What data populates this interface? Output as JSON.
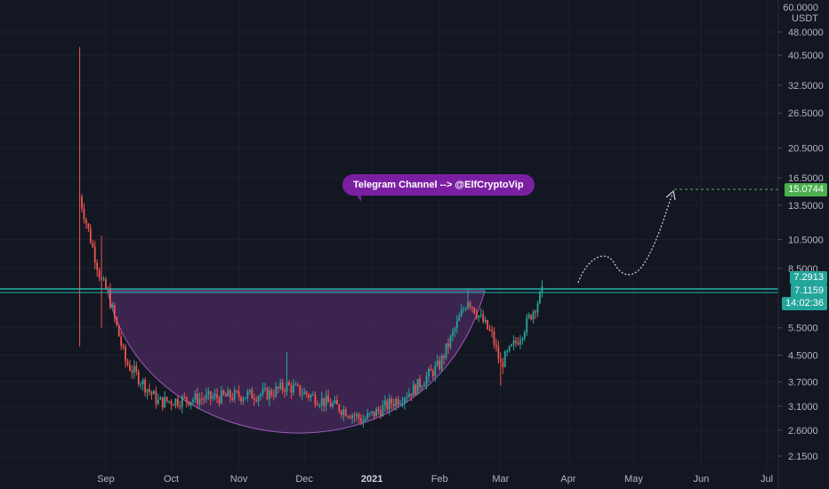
{
  "chart": {
    "unit_top": "60.0000",
    "unit": "USDT"
  },
  "annotation": {
    "text": "Telegram Channel --> @ElfCryptoVip"
  },
  "price_tags": {
    "target": "15.0744",
    "resistance": "7.2913",
    "last": "7.1159",
    "countdown": "14:02:36"
  },
  "colors": {
    "background": "#131722",
    "up": "#26a69a",
    "down": "#ef5350",
    "resistance_line": "#22b3a8",
    "target_tag": "#4caf50",
    "bubble": "#7b1fa2",
    "cup_fill": "#4a2a5e"
  },
  "chart_data": {
    "type": "candlestick",
    "y_scale": "log",
    "ylim": [
      2.0,
      60.0
    ],
    "y_ticks": [
      "60.0000",
      "48.0000",
      "40.5000",
      "32.5000",
      "26.5000",
      "20.5000",
      "16.5000",
      "13.5000",
      "10.5000",
      "8.5000",
      "5.5000",
      "4.5000",
      "3.7000",
      "3.1000",
      "2.6000",
      "2.1500"
    ],
    "y_tick_values": [
      60,
      48,
      40.5,
      32.5,
      26.5,
      20.5,
      16.5,
      13.5,
      10.5,
      8.5,
      5.5,
      4.5,
      3.7,
      3.1,
      2.6,
      2.15
    ],
    "x_ticks": [
      "Sep",
      "Oct",
      "Nov",
      "Dec",
      "2021",
      "Feb",
      "Mar",
      "Apr",
      "May",
      "Jun",
      "Jul"
    ],
    "x_tick_dates": [
      "2020-09-01",
      "2020-10-01",
      "2020-11-01",
      "2020-12-01",
      "2021-01-01",
      "2021-02-01",
      "2021-03-01",
      "2021-04-01",
      "2021-05-01",
      "2021-06-01",
      "2021-07-01"
    ],
    "resistance_level": 7.2913,
    "target_level": 15.0744,
    "last_price": 7.1159,
    "key_points": [
      {
        "date": "2020-08-20",
        "high": 43.0,
        "low": 4.8,
        "note": "listing wick"
      },
      {
        "date": "2020-08-30",
        "high": 10.8,
        "low": 5.5
      },
      {
        "date": "2020-09-02",
        "close": 7.1
      },
      {
        "date": "2020-09-10",
        "close": 4.3
      },
      {
        "date": "2020-09-25",
        "close": 3.2
      },
      {
        "date": "2020-10-20",
        "close": 3.3
      },
      {
        "date": "2020-11-15",
        "close": 3.4
      },
      {
        "date": "2020-11-23",
        "high": 4.6,
        "close": 3.6
      },
      {
        "date": "2020-12-20",
        "close": 3.0
      },
      {
        "date": "2020-12-28",
        "low": 2.65,
        "close": 2.8
      },
      {
        "date": "2021-01-20",
        "close": 3.5
      },
      {
        "date": "2021-02-01",
        "close": 4.2
      },
      {
        "date": "2021-02-14",
        "high": 7.3,
        "close": 6.8
      },
      {
        "date": "2021-02-25",
        "close": 5.2
      },
      {
        "date": "2021-03-01",
        "low": 3.6,
        "close": 4.2
      },
      {
        "date": "2021-03-10",
        "close": 5.2
      },
      {
        "date": "2021-03-20",
        "high": 7.8,
        "close": 7.1159
      }
    ],
    "projection": [
      {
        "date": "2021-04-05",
        "value": 8.2
      },
      {
        "date": "2021-04-20",
        "value": 9.0
      },
      {
        "date": "2021-05-01",
        "value": 8.4
      },
      {
        "date": "2021-05-20",
        "value": 14.0
      },
      {
        "date": "2021-06-01",
        "value": 15.0744
      }
    ]
  }
}
